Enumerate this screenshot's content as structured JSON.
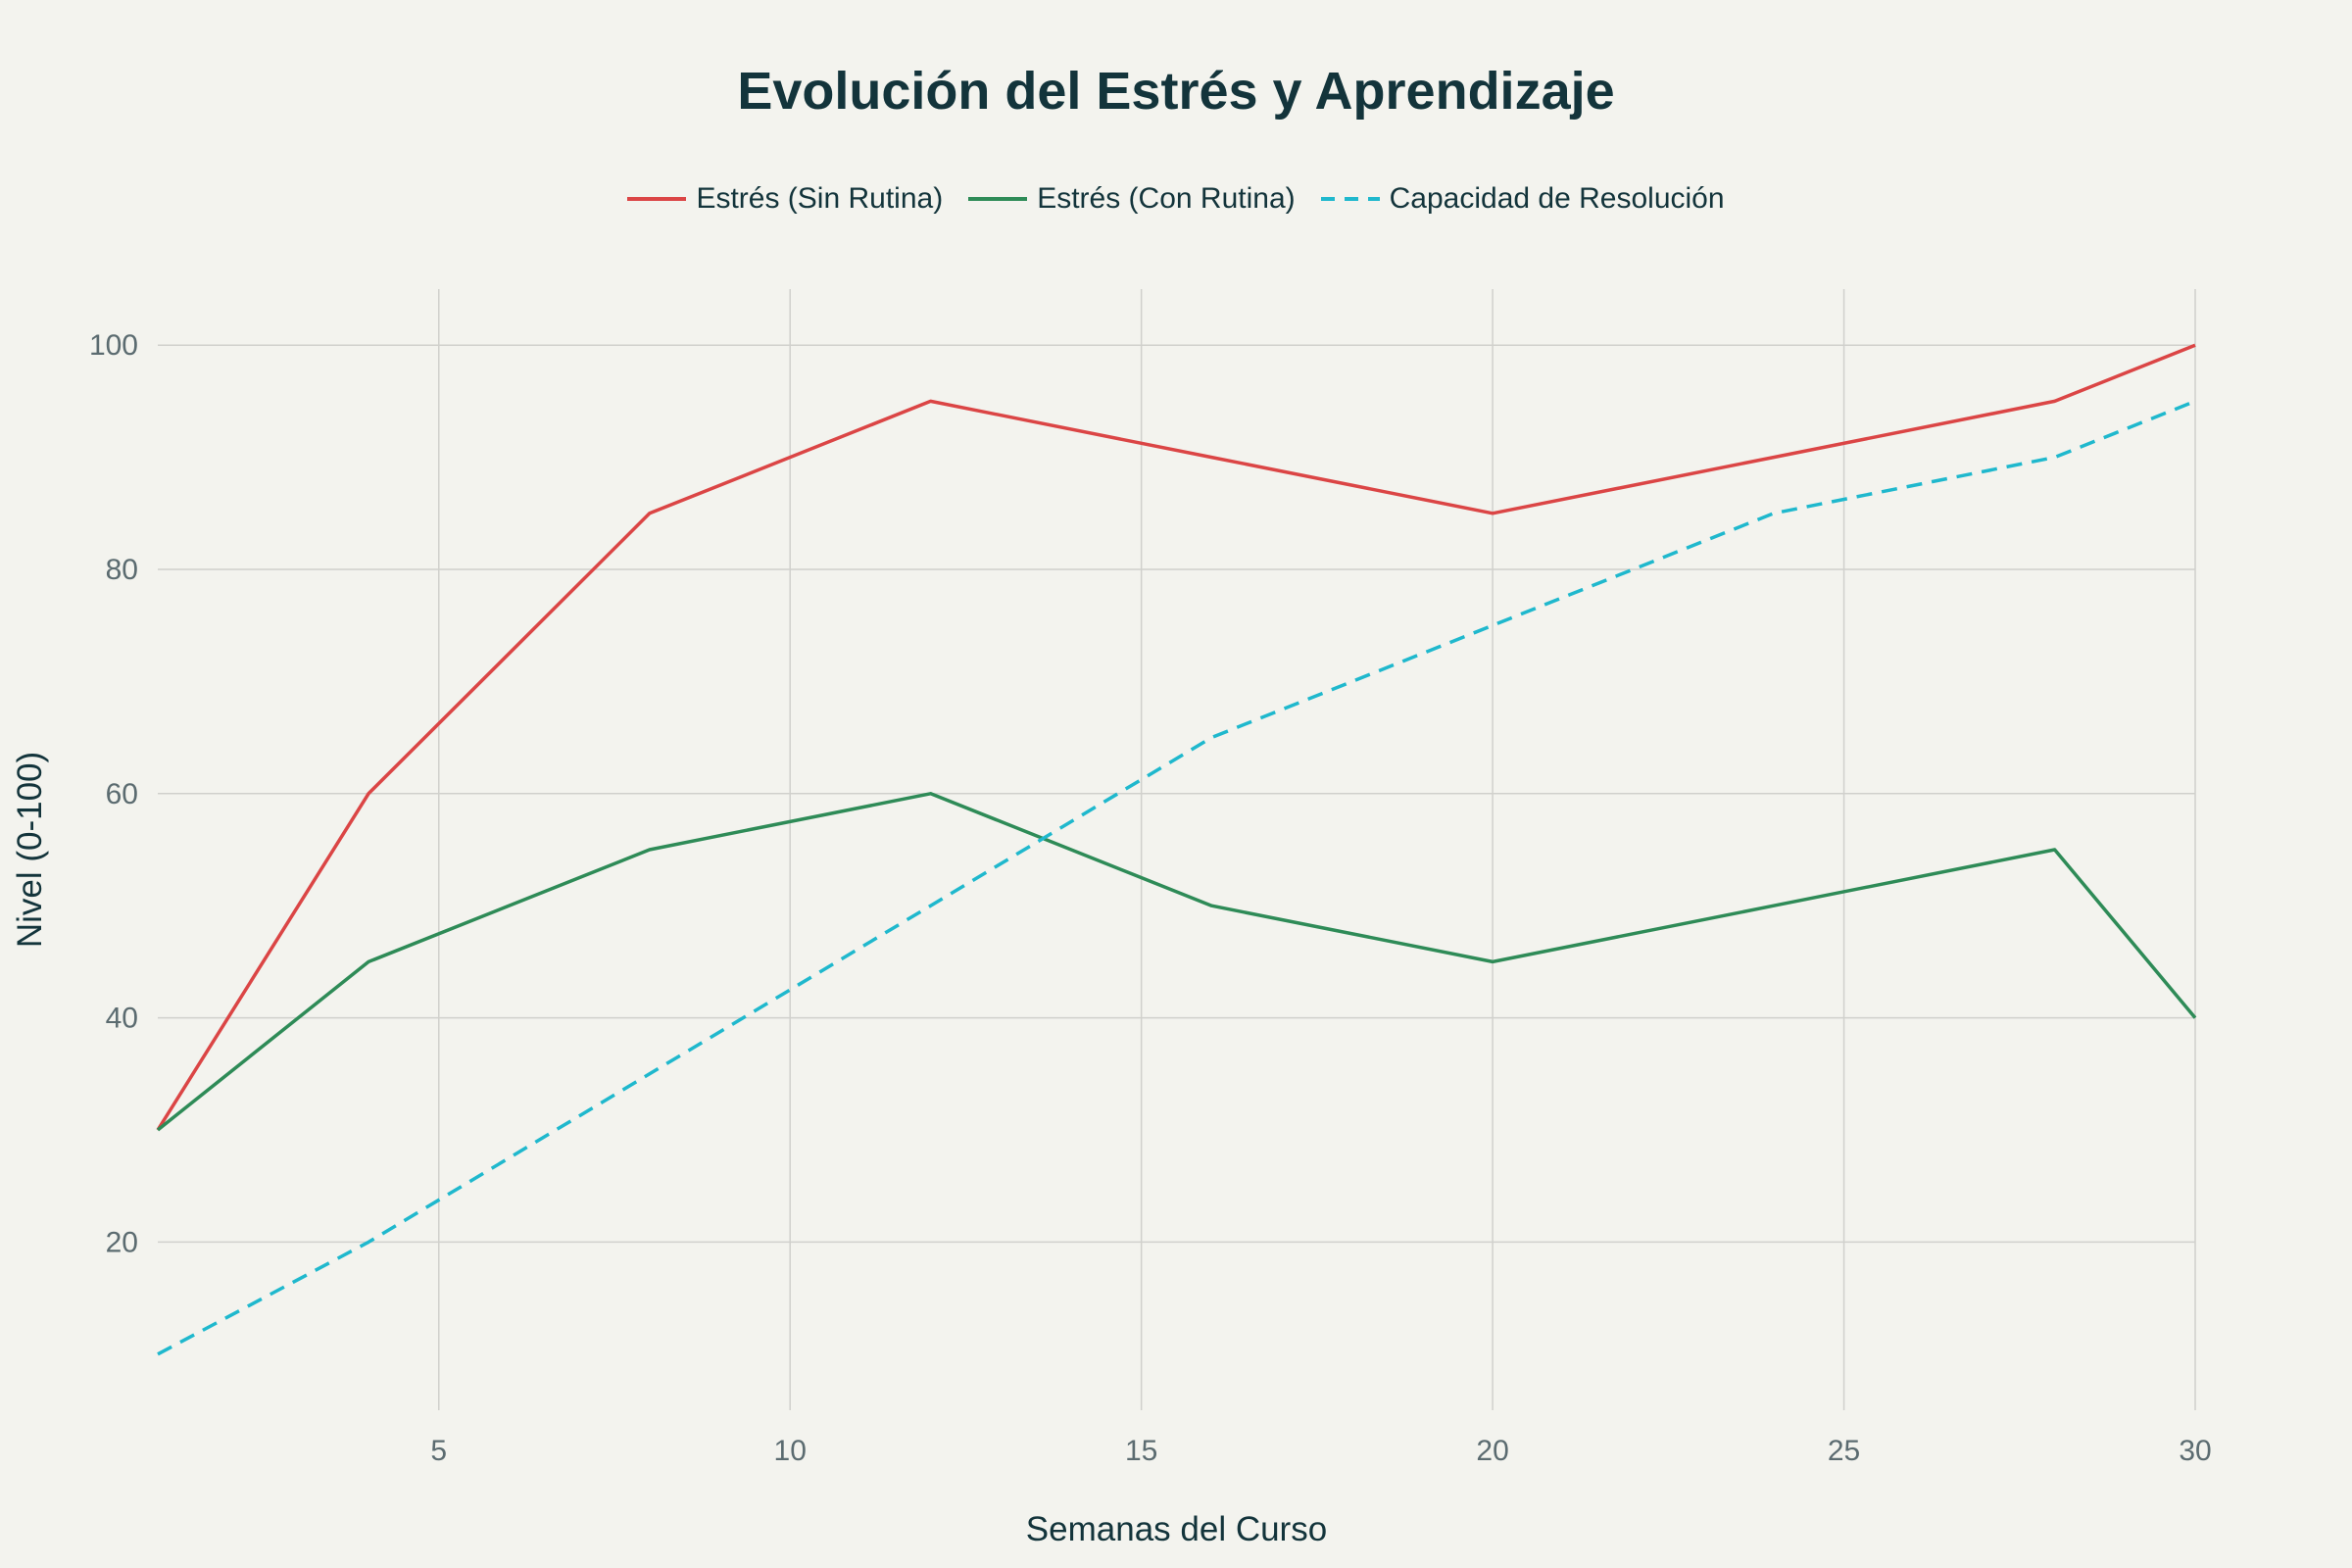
{
  "chart_data": {
    "type": "line",
    "title": "Evolución del Estrés y Aprendizaje",
    "xlabel": "Semanas del Curso",
    "ylabel": "Nivel (0-100)",
    "x": [
      1,
      4,
      8,
      12,
      16,
      20,
      24,
      28,
      30
    ],
    "xlim": [
      1,
      30
    ],
    "ylim": [
      5,
      105
    ],
    "xticks": [
      5,
      10,
      15,
      20,
      25,
      30
    ],
    "yticks": [
      20,
      40,
      60,
      80,
      100
    ],
    "grid": true,
    "legend_position": "top-center",
    "series": [
      {
        "name": "Estrés (Sin Rutina)",
        "color": "#db4545",
        "dash": "solid",
        "values": [
          30,
          60,
          85,
          95,
          90,
          85,
          90,
          95,
          100
        ]
      },
      {
        "name": "Estrés (Con Rutina)",
        "color": "#2e8b57",
        "dash": "solid",
        "values": [
          30,
          45,
          55,
          60,
          50,
          45,
          50,
          55,
          40
        ]
      },
      {
        "name": "Capacidad de Resolución",
        "color": "#1fb8cd",
        "dash": "dash",
        "values": [
          10,
          20,
          35,
          50,
          65,
          75,
          85,
          90,
          95
        ]
      }
    ]
  }
}
